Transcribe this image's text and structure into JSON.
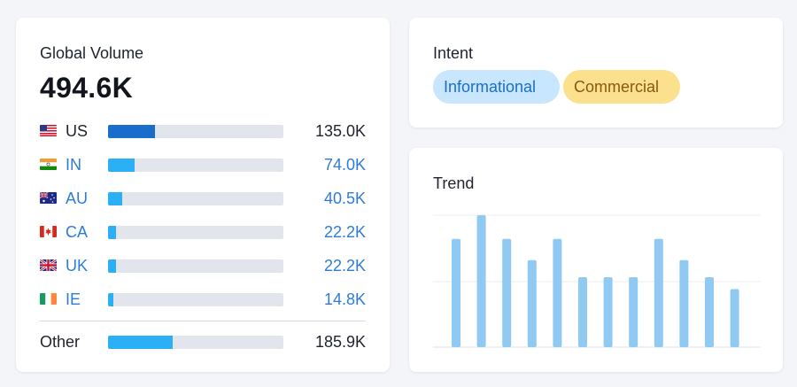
{
  "global_volume": {
    "title": "Global Volume",
    "total": "494.6K",
    "countries": [
      {
        "code": "US",
        "value": "135.0K",
        "share": 0.27,
        "flag": "us-flag-icon",
        "link": false,
        "dark": true
      },
      {
        "code": "IN",
        "value": "74.0K",
        "share": 0.15,
        "flag": "in-flag-icon",
        "link": true,
        "dark": false
      },
      {
        "code": "AU",
        "value": "40.5K",
        "share": 0.08,
        "flag": "au-flag-icon",
        "link": true,
        "dark": false
      },
      {
        "code": "CA",
        "value": "22.2K",
        "share": 0.045,
        "flag": "ca-flag-icon",
        "link": true,
        "dark": false
      },
      {
        "code": "UK",
        "value": "22.2K",
        "share": 0.045,
        "flag": "uk-flag-icon",
        "link": true,
        "dark": false
      },
      {
        "code": "IE",
        "value": "14.8K",
        "share": 0.03,
        "flag": "ie-flag-icon",
        "link": true,
        "dark": false
      }
    ],
    "other": {
      "label": "Other",
      "value": "185.9K",
      "share": 0.37
    }
  },
  "intent": {
    "title": "Intent",
    "tags": [
      {
        "label": "Informational",
        "color": "#c8e6fd"
      },
      {
        "label": "Commercial",
        "color": "#fbe08d"
      }
    ]
  },
  "trend": {
    "title": "Trend",
    "bar_color": "#90caf3",
    "values": [
      82,
      100,
      82,
      66,
      82,
      53,
      53,
      53,
      82,
      66,
      53,
      44
    ]
  },
  "colors": {
    "link": "#2e7cd6",
    "bar_dark": "#1b6dcb",
    "bar_light": "#2bb0f6",
    "track": "#e3e5ec"
  }
}
